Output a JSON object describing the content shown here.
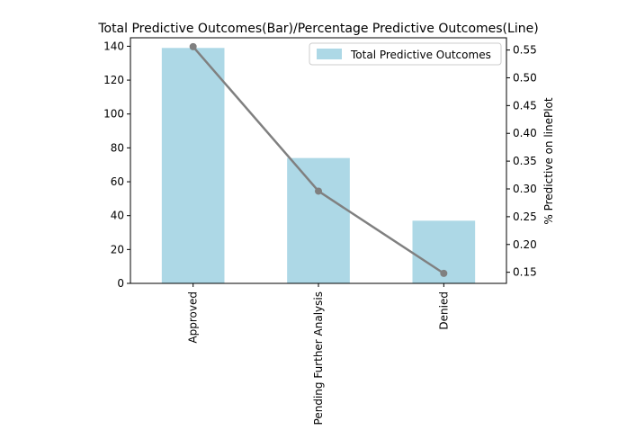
{
  "chart_data": {
    "type": "bar",
    "title": "Total Predictive Outcomes(Bar)/Percentage Predictive Outcomes(Line)",
    "categories": [
      "Approved",
      "Pending Further Analysis",
      "Denied"
    ],
    "series": [
      {
        "name": "Total Predictive Outcomes",
        "type": "bar",
        "axis": "left",
        "values": [
          139,
          74,
          37
        ],
        "color": "#add8e6"
      },
      {
        "type": "line",
        "axis": "right",
        "values": [
          0.556,
          0.296,
          0.148
        ],
        "color": "#808080"
      }
    ],
    "y_left": {
      "label": "",
      "ylim": [
        0,
        145
      ],
      "ticks": [
        0,
        20,
        40,
        60,
        80,
        100,
        120,
        140
      ]
    },
    "y_right": {
      "label": "% Predictive on linePlot",
      "ylim": [
        0.13,
        0.572
      ],
      "ticks": [
        "0.15",
        "0.20",
        "0.25",
        "0.30",
        "0.35",
        "0.40",
        "0.45",
        "0.50",
        "0.55"
      ]
    },
    "xlabel": "",
    "grid": false,
    "legend": {
      "position": "top-right",
      "entries": [
        "Total Predictive Outcomes"
      ]
    }
  }
}
